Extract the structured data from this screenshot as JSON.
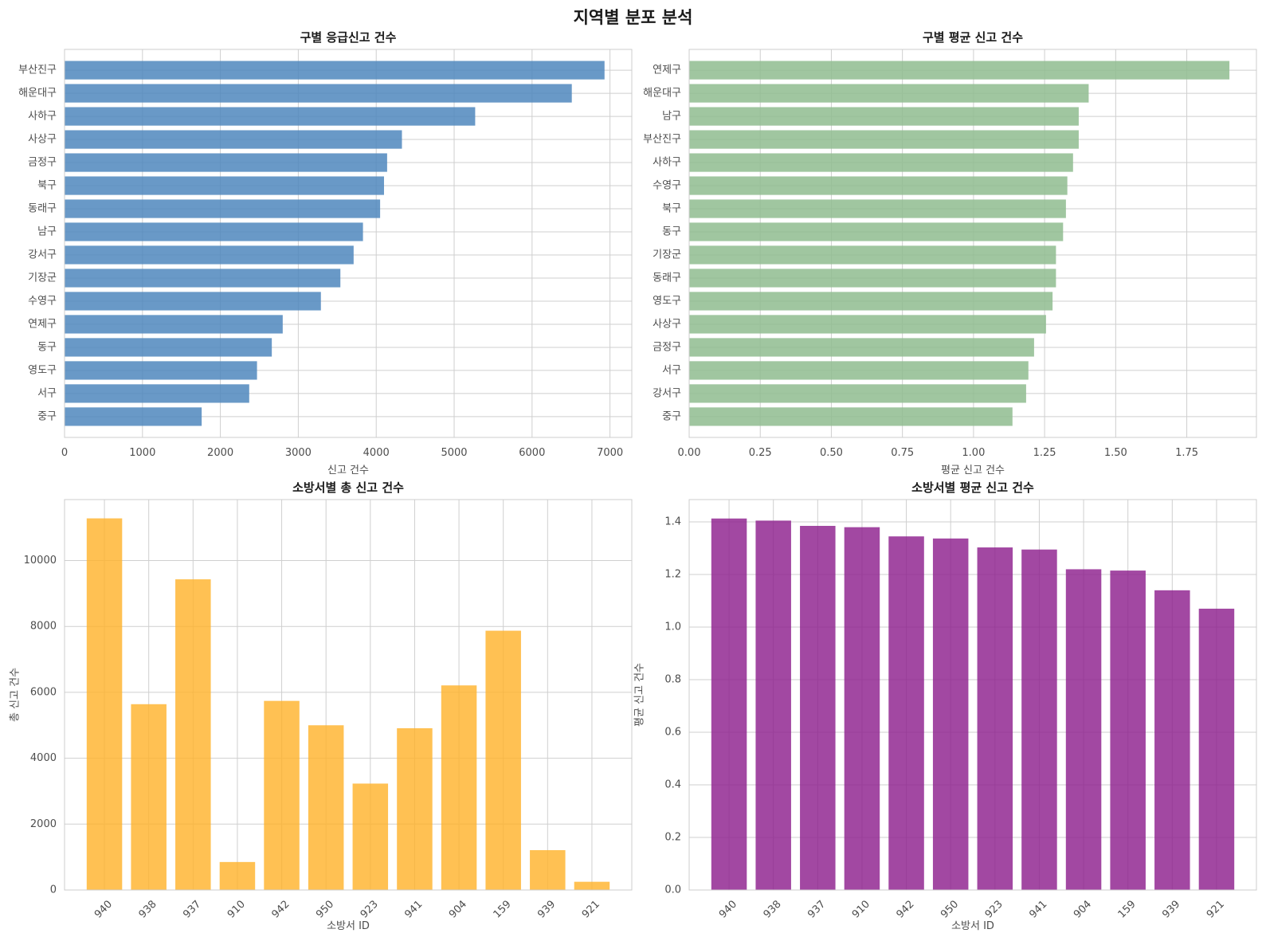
{
  "suptitle": "지역별 분포 분석",
  "chart_data": [
    {
      "type": "bar",
      "orientation": "horizontal",
      "title": "구별 응급신고 건수",
      "xlabel": "신고 건수",
      "ylabel": "",
      "categories": [
        "부산진구",
        "해운대구",
        "사하구",
        "사상구",
        "금정구",
        "북구",
        "동래구",
        "남구",
        "강서구",
        "기장군",
        "수영구",
        "연제구",
        "동구",
        "영도구",
        "서구",
        "중구"
      ],
      "values": [
        6930,
        6510,
        5270,
        4330,
        4140,
        4100,
        4050,
        3830,
        3710,
        3540,
        3290,
        2800,
        2660,
        2470,
        2370,
        1760
      ],
      "xlim": [
        0,
        7280
      ],
      "xticks": [
        0,
        1000,
        2000,
        3000,
        4000,
        5000,
        6000,
        7000
      ],
      "color": "#4f87bd",
      "grid": true
    },
    {
      "type": "bar",
      "orientation": "horizontal",
      "title": "구별 평균 신고 건수",
      "xlabel": "평균 신고 건수",
      "ylabel": "",
      "categories": [
        "연제구",
        "해운대구",
        "남구",
        "부산진구",
        "사하구",
        "수영구",
        "북구",
        "동구",
        "기장군",
        "동래구",
        "영도구",
        "사상구",
        "금정구",
        "서구",
        "강서구",
        "중구"
      ],
      "values": [
        1.9,
        1.405,
        1.37,
        1.37,
        1.35,
        1.33,
        1.325,
        1.315,
        1.29,
        1.29,
        1.278,
        1.255,
        1.213,
        1.193,
        1.185,
        1.137
      ],
      "xlim": [
        0,
        1.995
      ],
      "xticks": [
        0.0,
        0.25,
        0.5,
        0.75,
        1.0,
        1.25,
        1.5,
        1.75
      ],
      "tick_labels": [
        "0.00",
        "0.25",
        "0.50",
        "0.75",
        "1.00",
        "1.25",
        "1.50",
        "1.75"
      ],
      "color": "#8fbc8f",
      "grid": true
    },
    {
      "type": "bar",
      "orientation": "vertical",
      "title": "소방서별 총 신고 건수",
      "xlabel": "소방서 ID",
      "ylabel": "총 신고 건수",
      "categories": [
        "940",
        "938",
        "937",
        "910",
        "942",
        "950",
        "923",
        "941",
        "904",
        "159",
        "939",
        "921"
      ],
      "values": [
        11280,
        5640,
        9430,
        850,
        5740,
        5000,
        3230,
        4910,
        6210,
        7870,
        1210,
        250
      ],
      "ylim": [
        0,
        11850
      ],
      "yticks": [
        0,
        2000,
        4000,
        6000,
        8000,
        10000
      ],
      "color": "#ffb128",
      "grid": true
    },
    {
      "type": "bar",
      "orientation": "vertical",
      "title": "소방서별 평균 신고 건수",
      "xlabel": "소방서 ID",
      "ylabel": "평균 신고 건수",
      "categories": [
        "940",
        "938",
        "937",
        "910",
        "942",
        "950",
        "923",
        "941",
        "904",
        "159",
        "939",
        "921"
      ],
      "values": [
        1.413,
        1.405,
        1.385,
        1.38,
        1.345,
        1.337,
        1.303,
        1.295,
        1.22,
        1.215,
        1.14,
        1.07
      ],
      "ylim": [
        0,
        1.485
      ],
      "yticks": [
        0.0,
        0.2,
        0.4,
        0.6,
        0.8,
        1.0,
        1.2,
        1.4
      ],
      "tick_labels": [
        "0.0",
        "0.2",
        "0.4",
        "0.6",
        "0.8",
        "1.0",
        "1.2",
        "1.4"
      ],
      "color": "#8b1a8b",
      "grid": true
    }
  ]
}
